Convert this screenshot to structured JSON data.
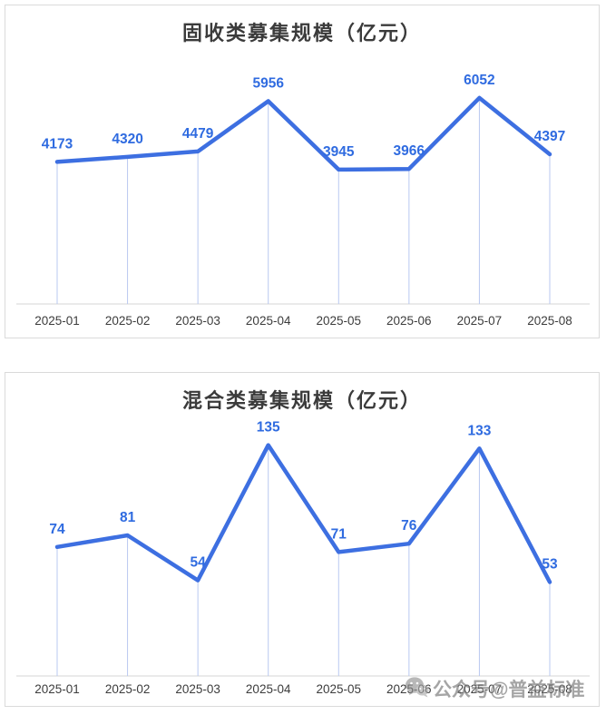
{
  "colors": {
    "line": "#3D6FE1",
    "value_label": "#2F6BE0",
    "drop_line": "#B9C8F0",
    "axis_line": "#E4E4E4",
    "x_label": "#3C3C3C",
    "title": "#3B3B3B",
    "panel_border": "#DADADA",
    "watermark": "#6F6F6F"
  },
  "watermark": {
    "icon": "wechat-icon",
    "text": "公众号@普益标准"
  },
  "chart_data": [
    {
      "type": "line",
      "title": "固收类募集规模（亿元）",
      "categories": [
        "2025-01",
        "2025-02",
        "2025-03",
        "2025-04",
        "2025-05",
        "2025-06",
        "2025-07",
        "2025-08"
      ],
      "values": [
        4173,
        4320,
        4479,
        5956,
        3945,
        3966,
        6052,
        4397
      ],
      "xlabel": "",
      "ylabel": "",
      "ylim": [
        0,
        6500
      ],
      "grid": false,
      "legend": "none",
      "data_labels": true
    },
    {
      "type": "line",
      "title": "混合类募集规模（亿元）",
      "categories": [
        "2025-01",
        "2025-02",
        "2025-03",
        "2025-04",
        "2025-05",
        "2025-06",
        "2025-07",
        "2025-08"
      ],
      "values": [
        74,
        81,
        54,
        135,
        71,
        76,
        133,
        53
      ],
      "xlabel": "",
      "ylabel": "",
      "ylim": [
        0,
        145
      ],
      "grid": false,
      "legend": "none",
      "data_labels": true
    }
  ]
}
